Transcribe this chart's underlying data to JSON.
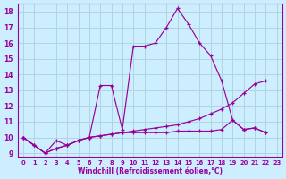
{
  "xlabel": "Windchill (Refroidissement éolien,°C)",
  "bg_color": "#cceeff",
  "grid_color": "#b0d4e0",
  "line_color": "#990099",
  "xlim": [
    -0.5,
    23.5
  ],
  "ylim": [
    8.8,
    18.5
  ],
  "xticks": [
    0,
    1,
    2,
    3,
    4,
    5,
    6,
    7,
    8,
    9,
    10,
    11,
    12,
    13,
    14,
    15,
    16,
    17,
    18,
    19,
    20,
    21,
    22,
    23
  ],
  "yticks": [
    9,
    10,
    11,
    12,
    13,
    14,
    15,
    16,
    17,
    18
  ],
  "series1_x": [
    0,
    1,
    2,
    3,
    4,
    5,
    6,
    7,
    8,
    9,
    10,
    11,
    12,
    13,
    14,
    15,
    16,
    17,
    18,
    19,
    20,
    21,
    22
  ],
  "series1_y": [
    10.0,
    9.5,
    9.0,
    9.8,
    9.5,
    9.8,
    10.0,
    13.3,
    13.3,
    10.5,
    15.8,
    15.8,
    16.0,
    17.0,
    18.2,
    17.2,
    16.0,
    15.2,
    13.6,
    11.1,
    10.5,
    10.6,
    10.3
  ],
  "series2_x": [
    0,
    1,
    2,
    3,
    4,
    5,
    6,
    7,
    8,
    9,
    10,
    11,
    12,
    13,
    14,
    15,
    16,
    17,
    18,
    19,
    20,
    21,
    22
  ],
  "series2_y": [
    10.0,
    9.5,
    9.0,
    9.3,
    9.5,
    9.8,
    10.0,
    10.1,
    10.2,
    10.3,
    10.4,
    10.5,
    10.6,
    10.7,
    10.8,
    11.0,
    11.2,
    11.5,
    11.8,
    12.2,
    12.8,
    13.4,
    13.6
  ],
  "series3_x": [
    0,
    1,
    2,
    3,
    4,
    5,
    6,
    7,
    8,
    9,
    10,
    11,
    12,
    13,
    14,
    15,
    16,
    17,
    18,
    19,
    20,
    21,
    22
  ],
  "series3_y": [
    10.0,
    9.5,
    9.0,
    9.3,
    9.5,
    9.8,
    10.0,
    10.1,
    10.2,
    10.3,
    10.3,
    10.3,
    10.3,
    10.3,
    10.4,
    10.4,
    10.4,
    10.4,
    10.5,
    11.1,
    10.5,
    10.6,
    10.3
  ]
}
